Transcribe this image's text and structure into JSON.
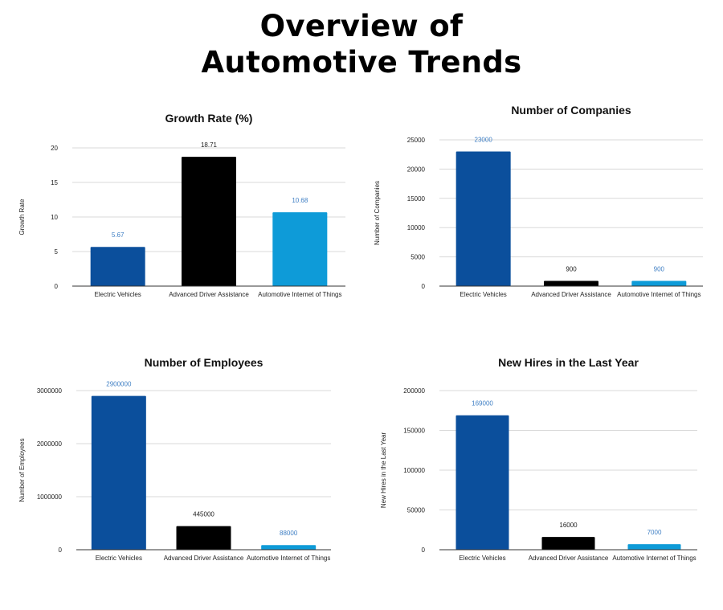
{
  "page": {
    "title_line1": "Overview of",
    "title_line2": "Automotive Trends"
  },
  "colors": {
    "electric": "#0b4f9c",
    "adas": "#000000",
    "iot": "#0e9bd8",
    "label_blue": "#3f7fc4",
    "label_dark": "#222222"
  },
  "chart_data": [
    {
      "type": "bar",
      "title": "Growth Rate (%)",
      "xlabel": "",
      "ylabel": "Growth Rate",
      "categories": [
        "Electric Vehicles",
        "Advanced Driver Assistance",
        "Automotive Internet of Things"
      ],
      "values": [
        5.67,
        18.71,
        10.68
      ],
      "data_labels": [
        "5.67",
        "18.71",
        "10.68"
      ],
      "ylim": [
        0,
        20
      ],
      "yticks": [
        0,
        5,
        10,
        15,
        20
      ],
      "ytick_labels": [
        "0",
        "5",
        "10",
        "15",
        "20"
      ],
      "grid": true
    },
    {
      "type": "bar",
      "title": "Number of Companies",
      "xlabel": "",
      "ylabel": "Number of Companies",
      "categories": [
        "Electric Vehicles",
        "Advanced Driver Assistance",
        "Automotive Internet of Things"
      ],
      "values": [
        23000,
        900,
        900
      ],
      "data_labels": [
        "23000",
        "900",
        "900"
      ],
      "ylim": [
        0,
        25000
      ],
      "yticks": [
        0,
        5000,
        10000,
        15000,
        20000,
        25000
      ],
      "ytick_labels": [
        "0",
        "5000",
        "10000",
        "15000",
        "20000",
        "25000"
      ],
      "grid": true
    },
    {
      "type": "bar",
      "title": "Number of Employees",
      "xlabel": "",
      "ylabel": "Number of Employees",
      "categories": [
        "Electric Vehicles",
        "Advanced Driver Assistance",
        "Automotive Internet of Things"
      ],
      "values": [
        2900000,
        445000,
        88000
      ],
      "data_labels": [
        "2900000",
        "445000",
        "88000"
      ],
      "ylim": [
        0,
        3000000
      ],
      "yticks": [
        0,
        1000000,
        2000000,
        3000000
      ],
      "ytick_labels": [
        "0",
        "1000000",
        "2000000",
        "3000000"
      ],
      "grid": true
    },
    {
      "type": "bar",
      "title": "New Hires in the Last Year",
      "xlabel": "",
      "ylabel": "New Hires in the Last Year",
      "categories": [
        "Electric Vehicles",
        "Advanced Driver Assistance",
        "Automotive Internet of Things"
      ],
      "values": [
        169000,
        16000,
        7000
      ],
      "data_labels": [
        "169000",
        "16000",
        "7000"
      ],
      "ylim": [
        0,
        200000
      ],
      "yticks": [
        0,
        50000,
        100000,
        150000,
        200000
      ],
      "ytick_labels": [
        "0",
        "50000",
        "100000",
        "150000",
        "200000"
      ],
      "grid": true
    }
  ]
}
